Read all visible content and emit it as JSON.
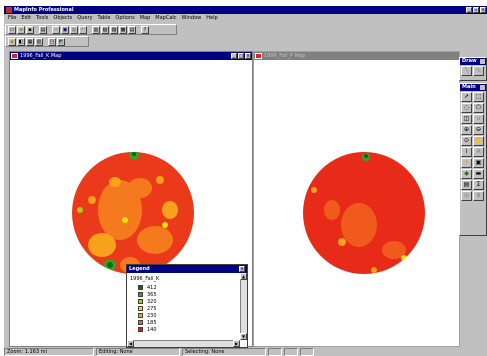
{
  "app": {
    "title": "MapInfo Professional"
  },
  "menu": [
    "File",
    "Edit",
    "Tools",
    "Objects",
    "Query",
    "Table",
    "Options",
    "Map",
    "MapCalc",
    "Window",
    "Help"
  ],
  "toolbar_icons": {
    "row1": [
      "new-icon",
      "open-icon",
      "save-icon",
      "print-icon",
      "cut-icon",
      "copy-icon",
      "paste-icon",
      "undo-icon",
      "new-browser-icon",
      "new-mapper-icon",
      "new-grapher-icon",
      "new-layout-icon",
      "new-redistrict-icon",
      "help-icon"
    ],
    "row2": [
      "layer-control-icon",
      "legend-icon",
      "statistics-icon",
      "browse-icon",
      "info-tool-icon",
      "run-tool-icon"
    ]
  },
  "map_windows": [
    {
      "title": "1996_Fall_K Map",
      "state": "active"
    },
    {
      "title": "1996_Fall_P Map",
      "state": "inactive"
    }
  ],
  "palettes": {
    "draw": {
      "title": "Draw"
    },
    "main": {
      "title": "Main",
      "tools": [
        "select-arrow-icon",
        "marquee-select-icon",
        "radius-select-icon",
        "polygon-select-icon",
        "boundary-select-icon",
        "unselect-icon",
        "zoom-in-icon",
        "zoom-out-icon",
        "change-view-icon",
        "grabber-icon",
        "info-icon",
        "label-icon",
        "hotlink-icon",
        "drag-window-icon",
        "layer-control-icon",
        "ruler-icon",
        "legend-icon",
        "statistics-icon",
        "set-target-icon",
        "clip-region-icon"
      ]
    }
  },
  "legend": {
    "title": "Legend",
    "layer": "1996_Fall_K",
    "items": [
      {
        "label": "412",
        "color": "#0a6b0a"
      },
      {
        "label": "365",
        "color": "#36a12c"
      },
      {
        "label": "320",
        "color": "#a8c820"
      },
      {
        "label": "275",
        "color": "#f0e400"
      },
      {
        "label": "230",
        "color": "#f8a21c"
      },
      {
        "label": "185",
        "color": "#f25a1c"
      },
      {
        "label": "140",
        "color": "#e01818"
      }
    ]
  },
  "status": {
    "zoom": "Zoom: 1.163 mi",
    "editing": "Editing: None",
    "selecting": "Selecting: None"
  }
}
